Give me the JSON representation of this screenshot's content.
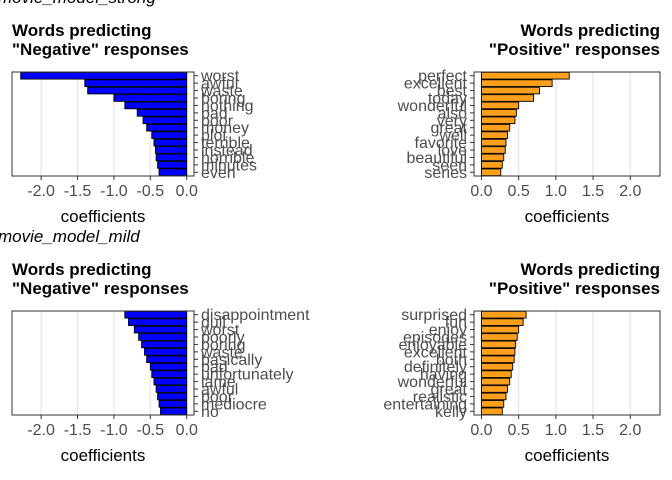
{
  "chart_data": [
    {
      "type": "bar",
      "orientation": "horizontal",
      "model": "movie_model_strong",
      "title": [
        "Words predicting",
        "\"Negative\" responses"
      ],
      "xlabel": "coefficients",
      "xlim": [
        -2.4,
        0.1
      ],
      "xticks": [
        -2.0,
        -1.5,
        -1.0,
        -0.5,
        0.0
      ],
      "xtick_labels": [
        "-2.0",
        "-1.5",
        "-1.0",
        "-0.5",
        "0.0"
      ],
      "grid": true,
      "bar_color": "#0000ff",
      "categories": [
        "worst",
        "awful",
        "waste",
        "boring",
        "nothing",
        "bad",
        "poor",
        "money",
        "plot",
        "terrible",
        "instead",
        "horrible",
        "minutes",
        "even"
      ],
      "values": [
        -2.28,
        -1.4,
        -1.36,
        -1.0,
        -0.85,
        -0.68,
        -0.6,
        -0.55,
        -0.48,
        -0.45,
        -0.43,
        -0.42,
        -0.4,
        -0.38
      ]
    },
    {
      "type": "bar",
      "orientation": "horizontal",
      "model": "movie_model_strong",
      "title": [
        "Words predicting",
        "\"Positive\" responses"
      ],
      "xlabel": "coefficients",
      "xlim": [
        -0.1,
        2.4
      ],
      "xticks": [
        0.0,
        0.5,
        1.0,
        1.5,
        2.0
      ],
      "xtick_labels": [
        "0.0",
        "0.5",
        "1.0",
        "1.5",
        "2.0"
      ],
      "grid": true,
      "bar_color": "#ff9f1c",
      "categories": [
        "perfect",
        "excellent",
        "best",
        "today",
        "wonderful",
        "also",
        "very",
        "great",
        "well",
        "favorite",
        "love",
        "beautiful",
        "seen",
        "series"
      ],
      "values": [
        1.18,
        0.95,
        0.78,
        0.7,
        0.5,
        0.47,
        0.45,
        0.38,
        0.35,
        0.33,
        0.32,
        0.3,
        0.28,
        0.26
      ]
    },
    {
      "type": "bar",
      "orientation": "horizontal",
      "model": "movie_model_mild",
      "title": [
        "Words predicting",
        "\"Negative\" responses"
      ],
      "xlabel": "coefficients",
      "xlim": [
        -2.4,
        0.1
      ],
      "xticks": [
        -2.0,
        -1.5,
        -1.0,
        -0.5,
        0.0
      ],
      "xtick_labels": [
        "-2.0",
        "-1.5",
        "-1.0",
        "-0.5",
        "0.0"
      ],
      "grid": true,
      "bar_color": "#0000ff",
      "categories": [
        "disappointment",
        "dull",
        "worst",
        "poorly",
        "boring",
        "waste",
        "basically",
        "bad",
        "unfortunately",
        "lame",
        "awful",
        "poor",
        "mediocre",
        "no"
      ],
      "values": [
        -0.85,
        -0.8,
        -0.72,
        -0.66,
        -0.62,
        -0.58,
        -0.55,
        -0.5,
        -0.48,
        -0.45,
        -0.42,
        -0.4,
        -0.38,
        -0.36
      ]
    },
    {
      "type": "bar",
      "orientation": "horizontal",
      "model": "movie_model_mild",
      "title": [
        "Words predicting",
        "\"Positive\" responses"
      ],
      "xlabel": "coefficients",
      "xlim": [
        -0.1,
        2.4
      ],
      "xticks": [
        0.0,
        0.5,
        1.0,
        1.5,
        2.0
      ],
      "xtick_labels": [
        "0.0",
        "0.5",
        "1.0",
        "1.5",
        "2.0"
      ],
      "grid": true,
      "bar_color": "#ff9f1c",
      "categories": [
        "surprised",
        "fun",
        "enjoy",
        "episodes",
        "enjoyable",
        "excellent",
        "both",
        "definitely",
        "having",
        "wonderful",
        "great",
        "realistic",
        "entertaining",
        "kelly"
      ],
      "values": [
        0.6,
        0.56,
        0.5,
        0.48,
        0.46,
        0.45,
        0.44,
        0.42,
        0.4,
        0.38,
        0.35,
        0.33,
        0.3,
        0.28
      ]
    }
  ]
}
